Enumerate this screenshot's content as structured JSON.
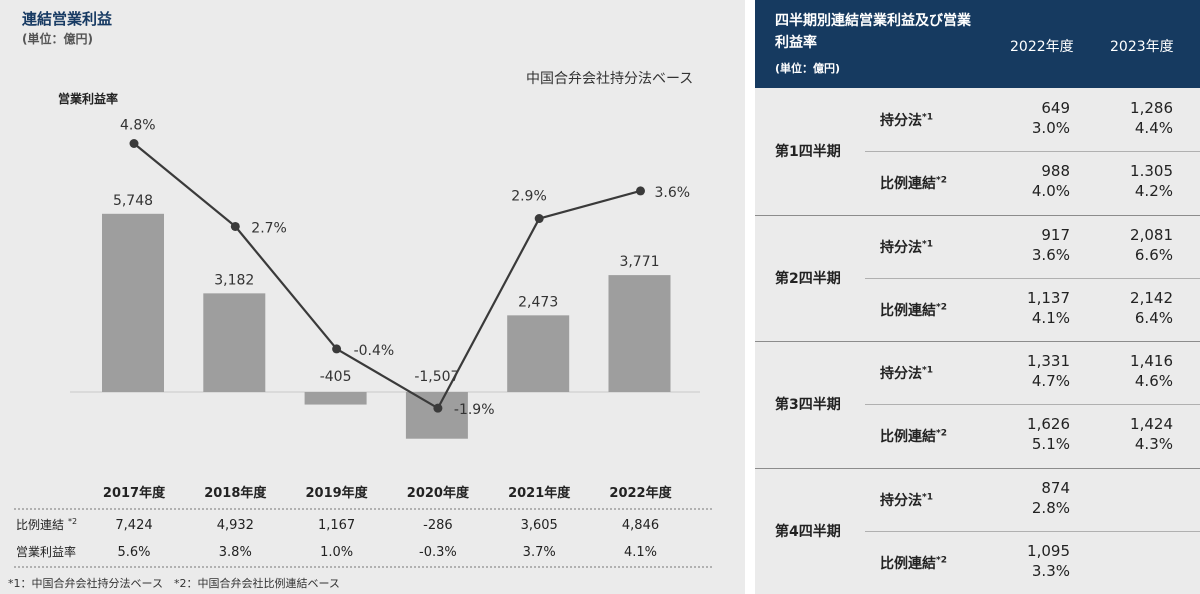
{
  "left_panel": {
    "title": "連結営業利益",
    "unit": "(単位：億円)",
    "basis_note": "中国合弁会社持分法ベース",
    "rate_label": "営業利益率",
    "row_labels": [
      "比例連結",
      "営業利益率"
    ],
    "row1_mark": "*2",
    "footnote": "*1：中国合弁会社持分法ベース　*2：中国合弁会社比例連結ベース"
  },
  "chart_data": {
    "type": "bar",
    "categories": [
      "2017年度",
      "2018年度",
      "2019年度",
      "2020年度",
      "2021年度",
      "2022年度"
    ],
    "series": [
      {
        "values": [
          5748,
          3182,
          -405,
          -1507,
          2473,
          3771
        ],
        "labels": [
          "5,748",
          "3,182",
          "-405",
          "-1,507",
          "2,473",
          "3,771"
        ],
        "kind": "bar"
      },
      {
        "name": "営業利益率",
        "values": [
          4.8,
          2.7,
          -0.4,
          -1.9,
          2.9,
          3.6
        ],
        "labels": [
          "4.8%",
          "2.7%",
          "-0.4%",
          "-1.9%",
          "2.9%",
          "3.6%"
        ],
        "kind": "line"
      }
    ],
    "table_rows": [
      {
        "label": "比例連結",
        "values": [
          "7,424",
          "4,932",
          "1,167",
          "-286",
          "3,605",
          "4,846"
        ]
      },
      {
        "label": "営業利益率",
        "values": [
          "5.6%",
          "3.8%",
          "1.0%",
          "-0.3%",
          "3.7%",
          "4.1%"
        ]
      }
    ],
    "colors": {
      "bar": "#9e9e9e",
      "line": "#3a3a3a"
    }
  },
  "quarterly_table": {
    "title": "四半期別連結営業利益及び営業利益率",
    "unit": "(単位：億円)",
    "years": [
      "2022年度",
      "2023年度"
    ],
    "method_labels": [
      "持分法",
      "比例連結"
    ],
    "method_marks": [
      "*1",
      "*2"
    ],
    "quarters": [
      {
        "name": "第1四半期",
        "rows": [
          {
            "v2022": "649",
            "r2022": "3.0%",
            "v2023": "1,286",
            "r2023": "4.4%"
          },
          {
            "v2022": "988",
            "r2022": "4.0%",
            "v2023": "1.305",
            "r2023": "4.2%"
          }
        ]
      },
      {
        "name": "第2四半期",
        "rows": [
          {
            "v2022": "917",
            "r2022": "3.6%",
            "v2023": "2,081",
            "r2023": "6.6%"
          },
          {
            "v2022": "1,137",
            "r2022": "4.1%",
            "v2023": "2,142",
            "r2023": "6.4%"
          }
        ]
      },
      {
        "name": "第3四半期",
        "rows": [
          {
            "v2022": "1,331",
            "r2022": "4.7%",
            "v2023": "1,416",
            "r2023": "4.6%"
          },
          {
            "v2022": "1,626",
            "r2022": "5.1%",
            "v2023": "1,424",
            "r2023": "4.3%"
          }
        ]
      },
      {
        "name": "第4四半期",
        "rows": [
          {
            "v2022": "874",
            "r2022": "2.8%",
            "v2023": "",
            "r2023": ""
          },
          {
            "v2022": "1,095",
            "r2022": "3.3%",
            "v2023": "",
            "r2023": ""
          }
        ]
      }
    ]
  }
}
